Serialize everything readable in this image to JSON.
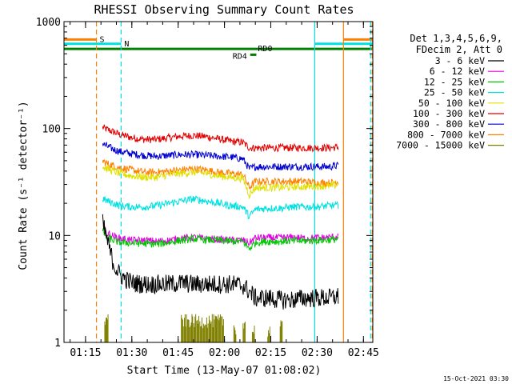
{
  "chart_data": {
    "type": "line",
    "title": "RHESSI Observing Summary Count Rates",
    "xlabel": "Start Time (13-May-07 01:08:02)",
    "ylabel": "Count Rate (s⁻¹ detector⁻¹)",
    "yscale": "log",
    "ylim": [
      1,
      1000
    ],
    "xlim_min": [
      0,
      100
    ],
    "x_units": "minutes after 01:08:02",
    "y_ticks": [
      {
        "label": "1",
        "value": 1
      },
      {
        "label": "10",
        "value": 10
      },
      {
        "label": "100",
        "value": 100
      },
      {
        "label": "1000",
        "value": 1000
      }
    ],
    "x_ticks": [
      {
        "label": "01:15",
        "value": 6.97
      },
      {
        "label": "01:30",
        "value": 21.97
      },
      {
        "label": "01:45",
        "value": 36.97
      },
      {
        "label": "02:00",
        "value": 51.97
      },
      {
        "label": "02:15",
        "value": 66.97
      },
      {
        "label": "02:30",
        "value": 81.97
      },
      {
        "label": "02:45",
        "value": 96.97
      }
    ],
    "legend": {
      "placement": "right",
      "header": [
        "Det 1,3,4,5,6,9,",
        "FDecim 2, Att 0"
      ]
    },
    "bars": [
      {
        "label": "S",
        "color": "#ff8000",
        "start": 0.0,
        "end": 10.5,
        "level": 680
      },
      {
        "label": "S",
        "color": "#ff8000",
        "start": 90.5,
        "end": 100.0,
        "level": 680
      },
      {
        "label": "N",
        "color": "#00e0e0",
        "start": 0.0,
        "end": 18.5,
        "level": 620
      },
      {
        "label": "N",
        "color": "#00e0e0",
        "start": 81.2,
        "end": 100.0,
        "level": 620
      },
      {
        "label": "RD0",
        "color": "#008000",
        "start": 0.0,
        "end": 100.0,
        "level": 555
      },
      {
        "label": "RD4",
        "color": "#008000",
        "start": 60.3,
        "end": 62.3,
        "level": 490
      }
    ],
    "vlines": [
      {
        "x": 10.5,
        "color": "#ff8000",
        "style": "dashed"
      },
      {
        "x": 18.5,
        "color": "#00e0e0",
        "style": "dashed"
      },
      {
        "x": 81.2,
        "color": "#00e0e0",
        "style": "solid"
      },
      {
        "x": 90.5,
        "color": "#ff8000",
        "style": "solid"
      },
      {
        "x": 99.3,
        "color": "#00e0e0",
        "style": "dashed"
      },
      {
        "x": 99.8,
        "color": "#ff8000",
        "style": "dashed"
      }
    ],
    "series": [
      {
        "name": "3 - 6 keV",
        "color": "#000000",
        "points": [
          [
            12.5,
            13
          ],
          [
            14,
            9
          ],
          [
            15,
            7
          ],
          [
            16,
            5.5
          ],
          [
            17,
            4.8
          ],
          [
            18,
            4.3
          ],
          [
            20,
            3.9
          ],
          [
            22,
            3.6
          ],
          [
            26,
            3.5
          ],
          [
            30,
            3.5
          ],
          [
            34,
            3.5
          ],
          [
            38,
            3.6
          ],
          [
            42,
            3.5
          ],
          [
            46,
            3.5
          ],
          [
            50,
            3.5
          ],
          [
            54,
            3.5
          ],
          [
            58,
            3.4
          ],
          [
            60,
            3.0
          ],
          [
            62,
            2.6
          ],
          [
            66,
            2.6
          ],
          [
            70,
            2.5
          ],
          [
            74,
            2.5
          ],
          [
            78,
            2.6
          ],
          [
            82,
            2.6
          ],
          [
            86,
            2.6
          ],
          [
            89,
            2.7
          ]
        ]
      },
      {
        "name": "6 - 12 keV",
        "color": "#e000e0",
        "points": [
          [
            12.5,
            12
          ],
          [
            14,
            10.5
          ],
          [
            16,
            9.8
          ],
          [
            18,
            9.4
          ],
          [
            22,
            9.0
          ],
          [
            26,
            9.0
          ],
          [
            30,
            8.8
          ],
          [
            34,
            9.0
          ],
          [
            38,
            9.4
          ],
          [
            42,
            9.6
          ],
          [
            46,
            9.3
          ],
          [
            50,
            9.2
          ],
          [
            54,
            9.0
          ],
          [
            58,
            9.0
          ],
          [
            60,
            8.5
          ],
          [
            62,
            9.5
          ],
          [
            66,
            9.5
          ],
          [
            70,
            9.5
          ],
          [
            74,
            9.6
          ],
          [
            78,
            9.4
          ],
          [
            82,
            9.5
          ],
          [
            86,
            9.6
          ],
          [
            89,
            9.8
          ]
        ]
      },
      {
        "name": "12 - 25 keV",
        "color": "#00c800",
        "points": [
          [
            12.5,
            11
          ],
          [
            14,
            9.5
          ],
          [
            16,
            9
          ],
          [
            18,
            8.6
          ],
          [
            22,
            8.5
          ],
          [
            26,
            8.4
          ],
          [
            30,
            8.3
          ],
          [
            34,
            8.6
          ],
          [
            38,
            9
          ],
          [
            42,
            9.3
          ],
          [
            46,
            9.1
          ],
          [
            50,
            9
          ],
          [
            54,
            8.8
          ],
          [
            58,
            8.8
          ],
          [
            60,
            7.5
          ],
          [
            62,
            8.6
          ],
          [
            66,
            8.8
          ],
          [
            70,
            8.8
          ],
          [
            74,
            8.9
          ],
          [
            78,
            8.9
          ],
          [
            82,
            9
          ],
          [
            86,
            9.1
          ],
          [
            89,
            9.3
          ]
        ]
      },
      {
        "name": "25 - 50 keV",
        "color": "#00e0e0",
        "points": [
          [
            12.5,
            22
          ],
          [
            14,
            21
          ],
          [
            16,
            20
          ],
          [
            18,
            19
          ],
          [
            22,
            18.5
          ],
          [
            26,
            18.5
          ],
          [
            30,
            19
          ],
          [
            34,
            20
          ],
          [
            38,
            21
          ],
          [
            42,
            22
          ],
          [
            46,
            21
          ],
          [
            50,
            20
          ],
          [
            54,
            19
          ],
          [
            58,
            18.5
          ],
          [
            60,
            15
          ],
          [
            62,
            17.5
          ],
          [
            66,
            18
          ],
          [
            70,
            18
          ],
          [
            74,
            18.5
          ],
          [
            78,
            18.5
          ],
          [
            82,
            18.5
          ],
          [
            86,
            19
          ],
          [
            89,
            19
          ]
        ]
      },
      {
        "name": "50 - 100 keV",
        "color": "#e0e000",
        "points": [
          [
            12.5,
            44
          ],
          [
            14,
            42
          ],
          [
            16,
            40
          ],
          [
            18,
            38
          ],
          [
            22,
            36
          ],
          [
            26,
            35
          ],
          [
            30,
            35
          ],
          [
            34,
            37
          ],
          [
            38,
            38
          ],
          [
            42,
            39
          ],
          [
            46,
            38
          ],
          [
            50,
            36
          ],
          [
            54,
            35
          ],
          [
            58,
            34
          ],
          [
            60,
            24
          ],
          [
            62,
            28
          ],
          [
            66,
            28
          ],
          [
            70,
            28
          ],
          [
            74,
            28.5
          ],
          [
            78,
            28.5
          ],
          [
            82,
            29
          ],
          [
            86,
            29
          ],
          [
            89,
            30
          ]
        ]
      },
      {
        "name": "100 - 300 keV",
        "color": "#e00000",
        "points": [
          [
            12.5,
            102
          ],
          [
            14,
            98
          ],
          [
            16,
            93
          ],
          [
            18,
            88
          ],
          [
            22,
            82
          ],
          [
            26,
            79
          ],
          [
            30,
            79
          ],
          [
            34,
            82
          ],
          [
            38,
            85
          ],
          [
            42,
            86
          ],
          [
            46,
            84
          ],
          [
            50,
            80
          ],
          [
            54,
            76
          ],
          [
            58,
            74
          ],
          [
            60,
            66
          ],
          [
            62,
            66
          ],
          [
            66,
            66
          ],
          [
            70,
            66
          ],
          [
            74,
            66
          ],
          [
            78,
            66
          ],
          [
            82,
            66
          ],
          [
            86,
            66
          ],
          [
            89,
            67
          ]
        ]
      },
      {
        "name": "300 - 800 keV",
        "color": "#0000d0",
        "points": [
          [
            12.5,
            72
          ],
          [
            14,
            68
          ],
          [
            16,
            64
          ],
          [
            18,
            61
          ],
          [
            22,
            58
          ],
          [
            26,
            56
          ],
          [
            30,
            55
          ],
          [
            34,
            56
          ],
          [
            38,
            57
          ],
          [
            42,
            57
          ],
          [
            46,
            56
          ],
          [
            50,
            55
          ],
          [
            54,
            54
          ],
          [
            58,
            52
          ],
          [
            60,
            42
          ],
          [
            62,
            44
          ],
          [
            66,
            44
          ],
          [
            70,
            44
          ],
          [
            74,
            44
          ],
          [
            78,
            44
          ],
          [
            82,
            44
          ],
          [
            86,
            44
          ],
          [
            89,
            45
          ]
        ]
      },
      {
        "name": "800 - 7000 keV",
        "color": "#ff8000",
        "points": [
          [
            12.5,
            50
          ],
          [
            14,
            47
          ],
          [
            16,
            45
          ],
          [
            18,
            43
          ],
          [
            22,
            41
          ],
          [
            26,
            39
          ],
          [
            30,
            39
          ],
          [
            34,
            40
          ],
          [
            38,
            41
          ],
          [
            42,
            42
          ],
          [
            46,
            41
          ],
          [
            50,
            39
          ],
          [
            54,
            38
          ],
          [
            58,
            37
          ],
          [
            60,
            28
          ],
          [
            62,
            32
          ],
          [
            66,
            32
          ],
          [
            70,
            32
          ],
          [
            74,
            32
          ],
          [
            78,
            32
          ],
          [
            82,
            31
          ],
          [
            86,
            31
          ],
          [
            89,
            32
          ]
        ]
      },
      {
        "name": "7000 - 15000 keV",
        "color": "#808000",
        "points": []
      }
    ]
  },
  "footer": {
    "timestamp": "15-Oct-2021 03:30"
  }
}
